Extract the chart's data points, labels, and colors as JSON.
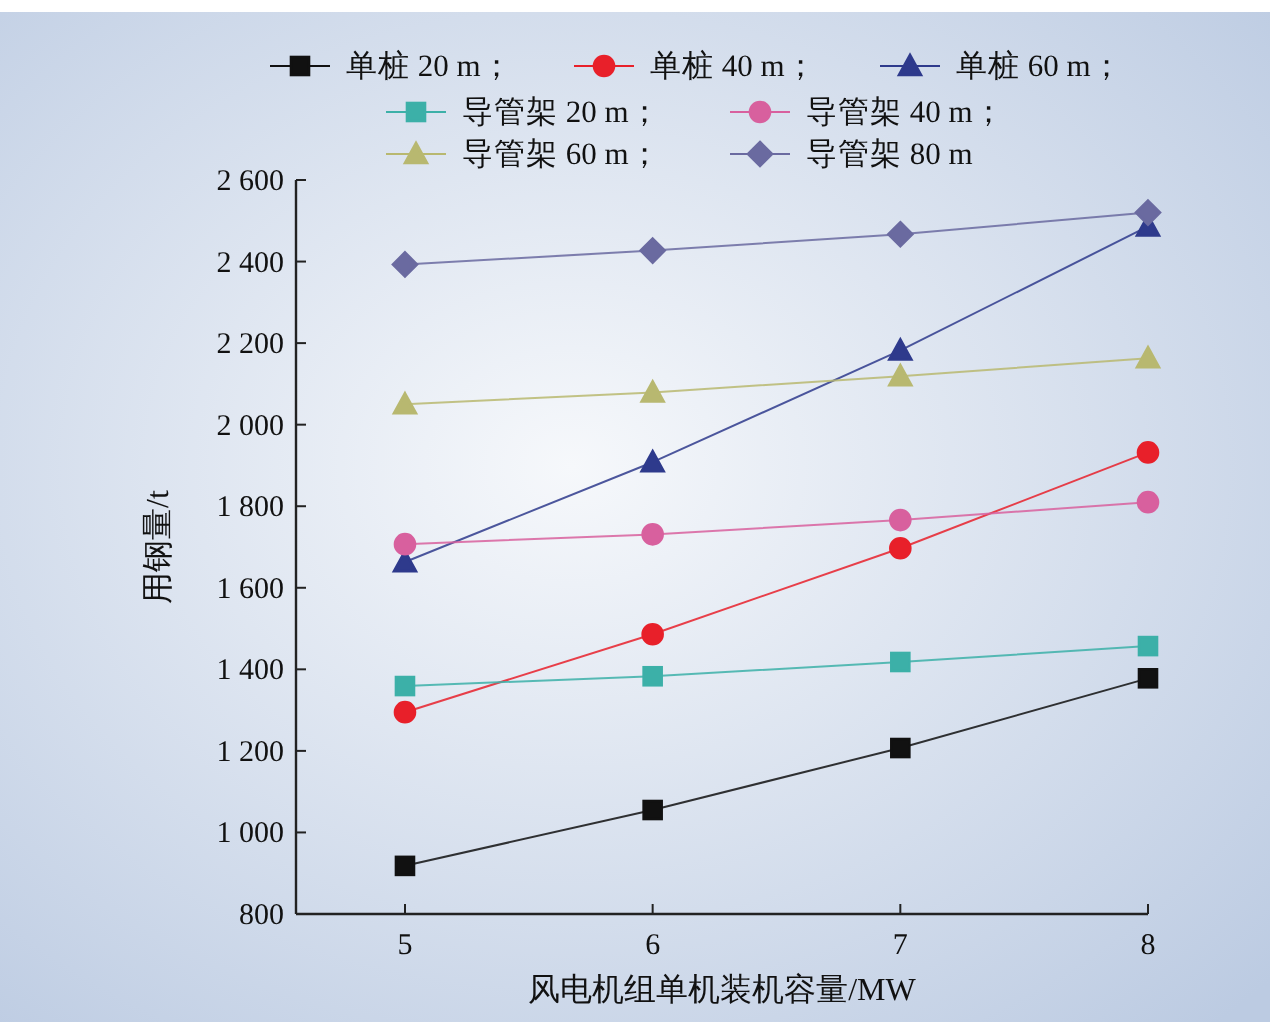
{
  "chart_data": {
    "type": "line",
    "xlabel": "风电机组单机装机容量/MW",
    "ylabel": "用钢量/t",
    "x": [
      5,
      6,
      7,
      8
    ],
    "xlim": [
      4.56,
      8
    ],
    "xticks": [
      5,
      6,
      7,
      8
    ],
    "ylim": [
      800,
      2600
    ],
    "yticks": [
      {
        "value": 800,
        "label": "800"
      },
      {
        "value": 1000,
        "label": "1 000"
      },
      {
        "value": 1200,
        "label": "1 200"
      },
      {
        "value": 1400,
        "label": "1 400"
      },
      {
        "value": 1600,
        "label": "1 600"
      },
      {
        "value": 1800,
        "label": "1 800"
      },
      {
        "value": 2000,
        "label": "2 000"
      },
      {
        "value": 2200,
        "label": "2 200"
      },
      {
        "value": 2400,
        "label": "2 400"
      },
      {
        "value": 2600,
        "label": "2 600"
      }
    ],
    "grid": false,
    "legend": "top",
    "line_style": "solid",
    "series": [
      {
        "name": "单桩 20 m；",
        "color": "#111111",
        "marker": "square",
        "values": [
          918,
          1055,
          1207,
          1378
        ]
      },
      {
        "name": "单桩 40 m；",
        "color": "#e8202a",
        "marker": "circle",
        "values": [
          1295,
          1486,
          1697,
          1932
        ]
      },
      {
        "name": "单桩 60 m；",
        "color": "#2e3a8c",
        "marker": "triangle",
        "values": [
          1663,
          1908,
          2182,
          2486
        ]
      },
      {
        "name": "导管架 20 m；",
        "color": "#3cb0a8",
        "marker": "square",
        "values": [
          1359,
          1383,
          1418,
          1457
        ]
      },
      {
        "name": "导管架 40 m；",
        "color": "#d8609e",
        "marker": "circle",
        "values": [
          1707,
          1731,
          1766,
          1810
        ]
      },
      {
        "name": "导管架 60 m；",
        "color": "#b8b870",
        "marker": "triangle",
        "values": [
          2050,
          2079,
          2119,
          2163
        ]
      },
      {
        "name": "导管架 80 m",
        "color": "#6a6aa0",
        "marker": "diamond",
        "values": [
          2393,
          2427,
          2467,
          2520
        ]
      }
    ]
  }
}
